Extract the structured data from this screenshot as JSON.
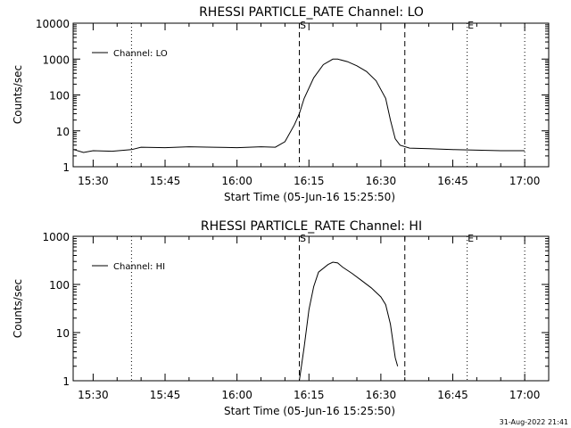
{
  "chart_data": [
    {
      "type": "line",
      "title": "RHESSI PARTICLE_RATE Channel: LO",
      "xlabel": "Start Time (05-Jun-16 15:25:50)",
      "ylabel": "Counts/sec",
      "yscale": "log",
      "ylim": [
        1,
        10000
      ],
      "xlim": [
        "15:25:50",
        "17:05:00"
      ],
      "y_ticks": [
        "1",
        "10",
        "100",
        "1000",
        "10000"
      ],
      "x_ticks": [
        "15:30",
        "15:45",
        "16:00",
        "16:15",
        "16:30",
        "16:45",
        "17:00"
      ],
      "legend": {
        "label": "Channel: LO",
        "position": "top-left"
      },
      "markers": [
        {
          "label": "S",
          "time": "16:13:00",
          "style": "dashed"
        },
        {
          "label": "E",
          "time": "16:48:00",
          "style": "dotted"
        }
      ],
      "vlines": [
        {
          "time": "15:38:00",
          "style": "dotted"
        },
        {
          "time": "16:13:00",
          "style": "dashed"
        },
        {
          "time": "16:35:00",
          "style": "dashed"
        },
        {
          "time": "16:48:00",
          "style": "dotted"
        },
        {
          "time": "17:00:00",
          "style": "dotted"
        }
      ],
      "series": [
        {
          "values": [
            [
              "15:26:00",
              3
            ],
            [
              "15:28:00",
              2.5
            ],
            [
              "15:30:00",
              2.8
            ],
            [
              "15:34:00",
              2.7
            ],
            [
              "15:38:00",
              3.0
            ],
            [
              "15:40:00",
              3.5
            ],
            [
              "15:45:00",
              3.4
            ],
            [
              "15:50:00",
              3.6
            ],
            [
              "15:55:00",
              3.5
            ],
            [
              "16:00:00",
              3.4
            ],
            [
              "16:05:00",
              3.6
            ],
            [
              "16:08:00",
              3.5
            ],
            [
              "16:10:00",
              5
            ],
            [
              "16:12:00",
              15
            ],
            [
              "16:13:00",
              30
            ],
            [
              "16:14:00",
              80
            ],
            [
              "16:16:00",
              300
            ],
            [
              "16:18:00",
              700
            ],
            [
              "16:20:00",
              1000
            ],
            [
              "16:21:00",
              1000
            ],
            [
              "16:23:00",
              850
            ],
            [
              "16:25:00",
              650
            ],
            [
              "16:27:00",
              450
            ],
            [
              "16:29:00",
              250
            ],
            [
              "16:31:00",
              80
            ],
            [
              "16:32:00",
              20
            ],
            [
              "16:33:00",
              6
            ],
            [
              "16:34:00",
              4
            ],
            [
              "16:36:00",
              3.3
            ],
            [
              "16:40:00",
              3.2
            ],
            [
              "16:45:00",
              3.0
            ],
            [
              "16:50:00",
              2.9
            ],
            [
              "16:55:00",
              2.8
            ],
            [
              "17:00:00",
              2.8
            ]
          ]
        }
      ]
    },
    {
      "type": "line",
      "title": "RHESSI PARTICLE_RATE Channel: HI",
      "xlabel": "Start Time (05-Jun-16 15:25:50)",
      "ylabel": "Counts/sec",
      "yscale": "log",
      "ylim": [
        1,
        1000
      ],
      "xlim": [
        "15:25:50",
        "17:05:00"
      ],
      "y_ticks": [
        "1",
        "10",
        "100",
        "1000"
      ],
      "x_ticks": [
        "15:30",
        "15:45",
        "16:00",
        "16:15",
        "16:30",
        "16:45",
        "17:00"
      ],
      "legend": {
        "label": "Channel: HI",
        "position": "top-left"
      },
      "markers": [
        {
          "label": "S",
          "time": "16:13:00",
          "style": "dashed"
        },
        {
          "label": "E",
          "time": "16:48:00",
          "style": "dotted"
        }
      ],
      "vlines": [
        {
          "time": "15:38:00",
          "style": "dotted"
        },
        {
          "time": "16:13:00",
          "style": "dashed"
        },
        {
          "time": "16:35:00",
          "style": "dashed"
        },
        {
          "time": "16:48:00",
          "style": "dotted"
        },
        {
          "time": "17:00:00",
          "style": "dotted"
        }
      ],
      "series": [
        {
          "values": [
            [
              "16:13:00",
              1.0
            ],
            [
              "16:14:00",
              5
            ],
            [
              "16:15:00",
              30
            ],
            [
              "16:16:00",
              90
            ],
            [
              "16:17:00",
              180
            ],
            [
              "16:19:00",
              260
            ],
            [
              "16:20:00",
              290
            ],
            [
              "16:21:00",
              280
            ],
            [
              "16:22:00",
              230
            ],
            [
              "16:24:00",
              170
            ],
            [
              "16:26:00",
              120
            ],
            [
              "16:28:00",
              85
            ],
            [
              "16:30:00",
              55
            ],
            [
              "16:31:00",
              38
            ],
            [
              "16:32:00",
              15
            ],
            [
              "16:33:00",
              3
            ],
            [
              "16:33:30",
              2
            ]
          ]
        }
      ]
    }
  ],
  "footer": {
    "timestamp": "31-Aug-2022 21:41"
  }
}
